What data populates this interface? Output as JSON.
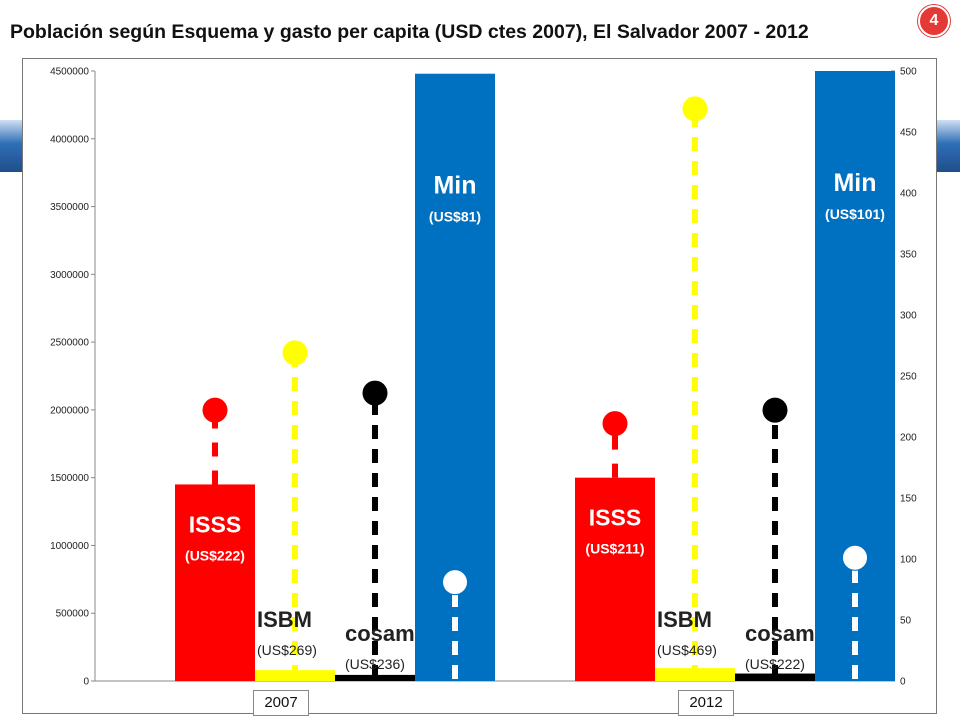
{
  "title": "Población según Esquema y gasto per capita (USD ctes 2007), El Salvador 2007 - 2012",
  "slide_number": "4",
  "chart_data": {
    "type": "bar",
    "title": "Población según Esquema y gasto per capita (USD ctes 2007), El Salvador 2007 - 2012",
    "categories": [
      "2007",
      "2012"
    ],
    "y_left": {
      "min": 0,
      "max": 4500000,
      "step": 500000,
      "ticks": [
        "0",
        "500000",
        "1000000",
        "1500000",
        "2000000",
        "2500000",
        "3000000",
        "3500000",
        "4000000",
        "4500000"
      ]
    },
    "y_right": {
      "min": 0,
      "max": 500,
      "step": 50,
      "ticks": [
        "0",
        "50",
        "100",
        "150",
        "200",
        "250",
        "300",
        "350",
        "400",
        "450",
        "500"
      ]
    },
    "series": [
      {
        "name": "ISSS",
        "color": "#ff0000",
        "text_color": "#ffffff",
        "label_position": "inside",
        "population": [
          1450000,
          1500000
        ],
        "spending_label": [
          "(US$222)",
          "(US$211)"
        ],
        "spending": [
          222,
          211
        ]
      },
      {
        "name": "ISBM",
        "color": "#ffff00",
        "text_color": "#222222",
        "label_position": "above",
        "population": [
          80000,
          95000
        ],
        "spending_label": [
          "(US$269)",
          "(US$469)"
        ],
        "spending": [
          269,
          469
        ]
      },
      {
        "name": "cosam",
        "color": "#000000",
        "text_color": "#222222",
        "label_position": "above",
        "population": [
          45000,
          55000
        ],
        "spending_label": [
          "(US$236)",
          "(US$222)"
        ],
        "spending": [
          236,
          222
        ]
      },
      {
        "name": "Min",
        "color": "#0070c0",
        "text_color": "#ffffff",
        "label_position": "inside",
        "population": [
          4480000,
          4500000
        ],
        "spending_label": [
          "(US$81)",
          "(US$101)"
        ],
        "spending": [
          81,
          101
        ]
      }
    ]
  }
}
